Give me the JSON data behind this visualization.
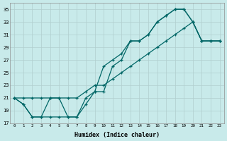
{
  "bg_color": "#c8eaea",
  "grid_color": "#b0cece",
  "line_color": "#006666",
  "xlabel": "Humidex (Indice chaleur)",
  "xlim": [
    -0.5,
    23.5
  ],
  "ylim": [
    17,
    36
  ],
  "xticks": [
    0,
    1,
    2,
    3,
    4,
    5,
    6,
    7,
    8,
    9,
    10,
    11,
    12,
    13,
    14,
    15,
    16,
    17,
    18,
    19,
    20,
    21,
    22,
    23
  ],
  "yticks": [
    17,
    19,
    21,
    23,
    25,
    27,
    29,
    31,
    33,
    35
  ],
  "curves": [
    {
      "x": [
        0,
        1,
        2,
        3,
        4,
        5,
        6,
        7,
        8,
        9,
        10,
        11,
        12,
        13,
        14,
        15,
        16,
        17,
        18,
        19,
        20,
        21,
        22,
        23
      ],
      "y": [
        21,
        20,
        18,
        18,
        18,
        18,
        18,
        18,
        20,
        22,
        26,
        27,
        28,
        30,
        30,
        31,
        33,
        34,
        35,
        35,
        33,
        30,
        30,
        30
      ]
    },
    {
      "x": [
        0,
        1,
        2,
        3,
        4,
        5,
        6,
        7,
        8,
        9,
        10,
        11,
        12,
        13,
        14,
        15,
        16,
        17,
        18,
        19,
        20,
        21,
        22,
        23
      ],
      "y": [
        21,
        20,
        18,
        18,
        21,
        21,
        18,
        18,
        21,
        22,
        22,
        26,
        27,
        30,
        30,
        31,
        33,
        34,
        35,
        35,
        33,
        30,
        30,
        30
      ]
    },
    {
      "x": [
        0,
        1,
        2,
        3,
        4,
        5,
        6,
        7,
        8,
        9,
        10,
        11,
        12,
        13,
        14,
        15,
        16,
        17,
        18,
        19,
        20,
        21,
        22,
        23
      ],
      "y": [
        21,
        21,
        21,
        21,
        21,
        21,
        21,
        21,
        22,
        23,
        23,
        24,
        25,
        26,
        27,
        28,
        29,
        30,
        31,
        32,
        33,
        30,
        30,
        30
      ]
    }
  ]
}
